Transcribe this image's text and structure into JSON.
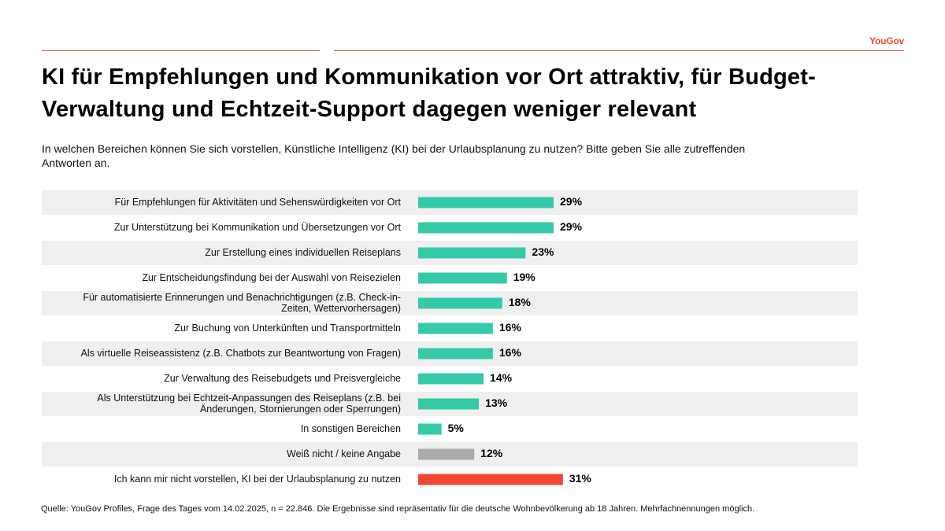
{
  "header": {
    "brand": "YouGov",
    "title": "KI für Empfehlungen und Kommunikation vor Ort attraktiv, für Budget-Verwaltung und Echtzeit-Support dagegen weniger relevant",
    "question": "In welchen Bereichen können Sie sich vorstellen, Künstliche Intelligenz (KI) bei der Urlaubsplanung zu nutzen? Bitte geben Sie alle zutreffenden Antworten an."
  },
  "footer": {
    "source": "Quelle: YouGov Profiles, Frage des Tages vom 14.02.2025, n = 22.846. Die Ergebnisse sind repräsentativ für die deutsche Wohnbevölkerung ab 18 Jahren. Mehrfachnennungen möglich."
  },
  "colors": {
    "accent_red": "#e8463a",
    "bar_teal": "#33c9a9",
    "bar_grey": "#aaaaaa",
    "bar_red": "#f04632",
    "stripe_grey": "#efefef"
  },
  "chart_data": {
    "type": "bar",
    "orientation": "horizontal",
    "unit": "%",
    "xlim": [
      0,
      100
    ],
    "grid": false,
    "categories": [
      [
        "Für Empfehlungen für Aktivitäten und Sehenswürdigkeiten vor Ort"
      ],
      [
        "Zur Unterstützung bei Kommunikation und Übersetzungen vor Ort"
      ],
      [
        "Zur Erstellung eines individuellen Reiseplans"
      ],
      [
        "Zur Entscheidungsfindung bei der Auswahl von Reisezielen"
      ],
      [
        "Für automatisierte Erinnerungen und Benachrichtigungen (z.B. Check-in-",
        "Zeiten, Wettervorhersagen)"
      ],
      [
        "Zur Buchung von Unterkünften und Transportmitteln"
      ],
      [
        "Als virtuelle Reiseassistenz (z.B. Chatbots zur Beantwortung von Fragen)"
      ],
      [
        "Zur Verwaltung des Reisebudgets und Preisvergleiche"
      ],
      [
        "Als Unterstützung bei Echtzeit-Anpassungen des Reiseplans (z.B. bei",
        "Änderungen, Stornierungen oder Sperrungen)"
      ],
      [
        "In sonstigen Bereichen"
      ],
      [
        "Weiß nicht / keine Angabe"
      ],
      [
        "Ich kann mir nicht vorstellen, KI bei der Urlaubsplanung zu nutzen"
      ]
    ],
    "values": [
      29,
      29,
      23,
      19,
      18,
      16,
      16,
      14,
      13,
      5,
      12,
      31
    ],
    "value_labels": [
      "29%",
      "29%",
      "23%",
      "19%",
      "18%",
      "16%",
      "16%",
      "14%",
      "13%",
      "5%",
      "12%",
      "31%"
    ],
    "bar_colors": [
      "#33c9a9",
      "#33c9a9",
      "#33c9a9",
      "#33c9a9",
      "#33c9a9",
      "#33c9a9",
      "#33c9a9",
      "#33c9a9",
      "#33c9a9",
      "#33c9a9",
      "#aaaaaa",
      "#f04632"
    ]
  }
}
